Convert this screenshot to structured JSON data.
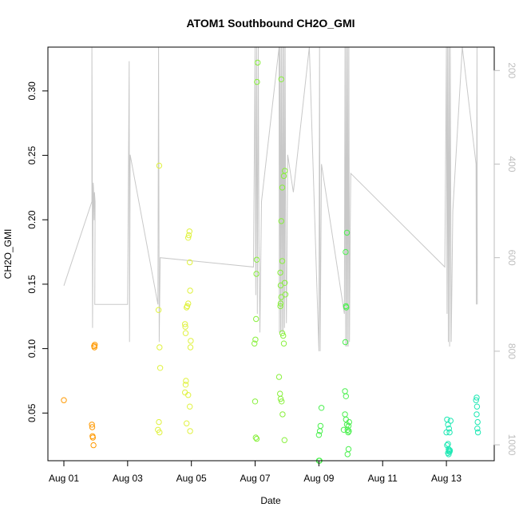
{
  "chart_data": {
    "type": "scatter",
    "title": "ATOM1 Southbound CH2O_GMI",
    "xlabel": "Date",
    "ylabel": "CH2O_GMI",
    "x_ticks": [
      "Aug 01",
      "Aug 03",
      "Aug 05",
      "Aug 07",
      "Aug 09",
      "Aug 11",
      "Aug 13"
    ],
    "y_ticks": [
      "0.05",
      "0.10",
      "0.15",
      "0.20",
      "0.25",
      "0.30"
    ],
    "y2_ticks": [
      "200",
      "400",
      "600",
      "800",
      "1000"
    ],
    "xlim": [
      0,
      13
    ],
    "ylim": [
      0.013,
      0.334
    ],
    "y2lim": [
      1034,
      150
    ],
    "y2_reversed": true,
    "y2_color": "#bebebe",
    "point_marker": "open-circle",
    "series": [
      {
        "color": "#ff9900",
        "points": [
          [
            0,
            0.06
          ],
          [
            0.88,
            0.041
          ],
          [
            0.89,
            0.039
          ],
          [
            0.9,
            0.032
          ],
          [
            0.91,
            0.031
          ],
          [
            0.93,
            0.025
          ],
          [
            0.95,
            0.102
          ],
          [
            0.96,
            0.101
          ],
          [
            0.97,
            0.103
          ]
        ]
      },
      {
        "color": "#e0f240",
        "points": [
          [
            2.95,
            0.037
          ],
          [
            2.98,
            0.043
          ],
          [
            3.0,
            0.035
          ],
          [
            3.02,
            0.085
          ],
          [
            3.0,
            0.101
          ],
          [
            2.97,
            0.13
          ],
          [
            2.99,
            0.242
          ],
          [
            3.8,
            0.119
          ],
          [
            3.81,
            0.117
          ],
          [
            3.82,
            0.112
          ],
          [
            3.8,
            0.066
          ],
          [
            3.82,
            0.072
          ],
          [
            3.83,
            0.075
          ],
          [
            3.85,
            0.042
          ],
          [
            3.9,
            0.064
          ],
          [
            3.95,
            0.055
          ],
          [
            3.96,
            0.036
          ],
          [
            3.9,
            0.186
          ],
          [
            3.92,
            0.188
          ],
          [
            3.94,
            0.191
          ],
          [
            3.95,
            0.167
          ],
          [
            3.96,
            0.145
          ],
          [
            3.97,
            0.101
          ],
          [
            3.98,
            0.106
          ],
          [
            3.85,
            0.132
          ],
          [
            3.87,
            0.133
          ],
          [
            3.9,
            0.135
          ]
        ]
      },
      {
        "color": "#88f03c",
        "points": [
          [
            6.0,
            0.059
          ],
          [
            6.02,
            0.031
          ],
          [
            6.05,
            0.03
          ],
          [
            5.98,
            0.104
          ],
          [
            6.01,
            0.107
          ],
          [
            6.03,
            0.123
          ],
          [
            6.04,
            0.158
          ],
          [
            6.05,
            0.169
          ],
          [
            6.06,
            0.307
          ],
          [
            6.08,
            0.322
          ],
          [
            6.75,
            0.078
          ],
          [
            6.78,
            0.065
          ],
          [
            6.8,
            0.061
          ],
          [
            6.83,
            0.059
          ],
          [
            6.86,
            0.049
          ],
          [
            6.92,
            0.029
          ],
          [
            6.79,
            0.133
          ],
          [
            6.8,
            0.135
          ],
          [
            6.82,
            0.14
          ],
          [
            6.8,
            0.149
          ],
          [
            6.79,
            0.159
          ],
          [
            6.85,
            0.168
          ],
          [
            6.82,
            0.199
          ],
          [
            6.85,
            0.225
          ],
          [
            6.9,
            0.234
          ],
          [
            6.93,
            0.238
          ],
          [
            6.95,
            0.142
          ],
          [
            6.93,
            0.151
          ],
          [
            6.9,
            0.104
          ],
          [
            6.88,
            0.11
          ],
          [
            6.85,
            0.112
          ],
          [
            6.82,
            0.309
          ]
        ]
      },
      {
        "color": "#4cf050",
        "points": [
          [
            8.0,
            0.013
          ],
          [
            8.02,
            0.013
          ],
          [
            8.0,
            0.033
          ],
          [
            8.03,
            0.036
          ],
          [
            8.05,
            0.04
          ],
          [
            8.08,
            0.054
          ],
          [
            8.82,
            0.067
          ],
          [
            8.85,
            0.063
          ],
          [
            8.82,
            0.049
          ],
          [
            8.85,
            0.045
          ],
          [
            8.88,
            0.041
          ],
          [
            8.9,
            0.037
          ],
          [
            8.92,
            0.035
          ],
          [
            8.94,
            0.036
          ],
          [
            8.93,
            0.04
          ],
          [
            8.95,
            0.043
          ],
          [
            8.9,
            0.018
          ],
          [
            8.93,
            0.022
          ],
          [
            8.83,
            0.105
          ],
          [
            8.85,
            0.133
          ],
          [
            8.86,
            0.132
          ],
          [
            8.84,
            0.175
          ],
          [
            8.88,
            0.19
          ],
          [
            8.78,
            0.037
          ]
        ]
      },
      {
        "color": "#1ee8b4",
        "points": [
          [
            12.02,
            0.045
          ],
          [
            12.05,
            0.041
          ],
          [
            12.08,
            0.038
          ],
          [
            12.1,
            0.035
          ],
          [
            12.0,
            0.035
          ],
          [
            12.02,
            0.025
          ],
          [
            12.05,
            0.026
          ],
          [
            12.07,
            0.022
          ],
          [
            12.08,
            0.021
          ],
          [
            12.09,
            0.02
          ],
          [
            12.1,
            0.02
          ],
          [
            12.11,
            0.021
          ],
          [
            12.05,
            0.019
          ],
          [
            12.07,
            0.018
          ],
          [
            12.13,
            0.044
          ],
          [
            12.93,
            0.06
          ],
          [
            12.95,
            0.062
          ],
          [
            12.96,
            0.055
          ],
          [
            12.95,
            0.049
          ],
          [
            12.98,
            0.043
          ],
          [
            12.97,
            0.038
          ],
          [
            12.99,
            0.035
          ]
        ]
      }
    ],
    "pressure_line": {
      "color": "#c8c8c8",
      "points": [
        [
          0.0,
          660
        ],
        [
          0.88,
          480
        ],
        [
          0.88,
          150
        ],
        [
          0.89,
          340
        ],
        [
          0.9,
          750
        ],
        [
          0.92,
          440
        ],
        [
          0.93,
          450
        ],
        [
          0.95,
          520
        ],
        [
          0.96,
          460
        ],
        [
          0.98,
          480
        ],
        [
          0.97,
          700
        ],
        [
          2.0,
          700
        ],
        [
          2.05,
          180
        ],
        [
          2.06,
          780
        ],
        [
          2.08,
          380
        ],
        [
          2.95,
          700
        ],
        [
          2.97,
          150
        ],
        [
          2.99,
          780
        ],
        [
          3.02,
          600
        ],
        [
          5.95,
          620
        ],
        [
          6.0,
          150
        ],
        [
          6.02,
          680
        ],
        [
          6.05,
          150
        ],
        [
          6.07,
          720
        ],
        [
          6.1,
          150
        ],
        [
          6.12,
          560
        ],
        [
          6.15,
          760
        ],
        [
          6.2,
          480
        ],
        [
          6.75,
          150
        ],
        [
          6.76,
          760
        ],
        [
          6.78,
          150
        ],
        [
          6.8,
          760
        ],
        [
          6.82,
          150
        ],
        [
          6.84,
          760
        ],
        [
          6.86,
          150
        ],
        [
          6.88,
          760
        ],
        [
          6.9,
          150
        ],
        [
          6.92,
          750
        ],
        [
          6.94,
          150
        ],
        [
          6.96,
          600
        ],
        [
          6.98,
          740
        ],
        [
          7.02,
          380
        ],
        [
          7.2,
          460
        ],
        [
          7.7,
          150
        ],
        [
          8.0,
          800
        ],
        [
          8.02,
          150
        ],
        [
          8.04,
          800
        ],
        [
          8.08,
          400
        ],
        [
          8.8,
          720
        ],
        [
          8.82,
          150
        ],
        [
          8.84,
          790
        ],
        [
          8.86,
          150
        ],
        [
          8.88,
          790
        ],
        [
          8.9,
          150
        ],
        [
          8.92,
          790
        ],
        [
          8.94,
          150
        ],
        [
          8.96,
          780
        ],
        [
          8.98,
          560
        ],
        [
          9.0,
          420
        ],
        [
          11.95,
          620
        ],
        [
          12.0,
          150
        ],
        [
          12.02,
          720
        ],
        [
          12.04,
          150
        ],
        [
          12.06,
          780
        ],
        [
          12.08,
          150
        ],
        [
          12.1,
          790
        ],
        [
          12.12,
          150
        ],
        [
          12.15,
          780
        ],
        [
          12.2,
          500
        ],
        [
          12.5,
          150
        ],
        [
          12.93,
          400
        ],
        [
          12.94,
          700
        ],
        [
          12.96,
          150
        ],
        [
          12.97,
          700
        ]
      ]
    }
  }
}
